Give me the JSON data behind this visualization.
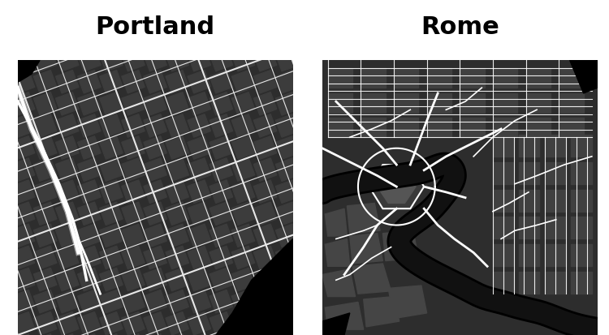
{
  "title_left": "Portland",
  "title_right": "Rome",
  "title_fontsize": 22,
  "title_fontweight": "bold",
  "title_color": "#000000",
  "background_color": "#ffffff",
  "map_bg": "#3a3a3a",
  "street_color": "#ffffff",
  "block_color": "#555555",
  "water_color": "#000000",
  "fig_width": 7.5,
  "fig_height": 4.13
}
